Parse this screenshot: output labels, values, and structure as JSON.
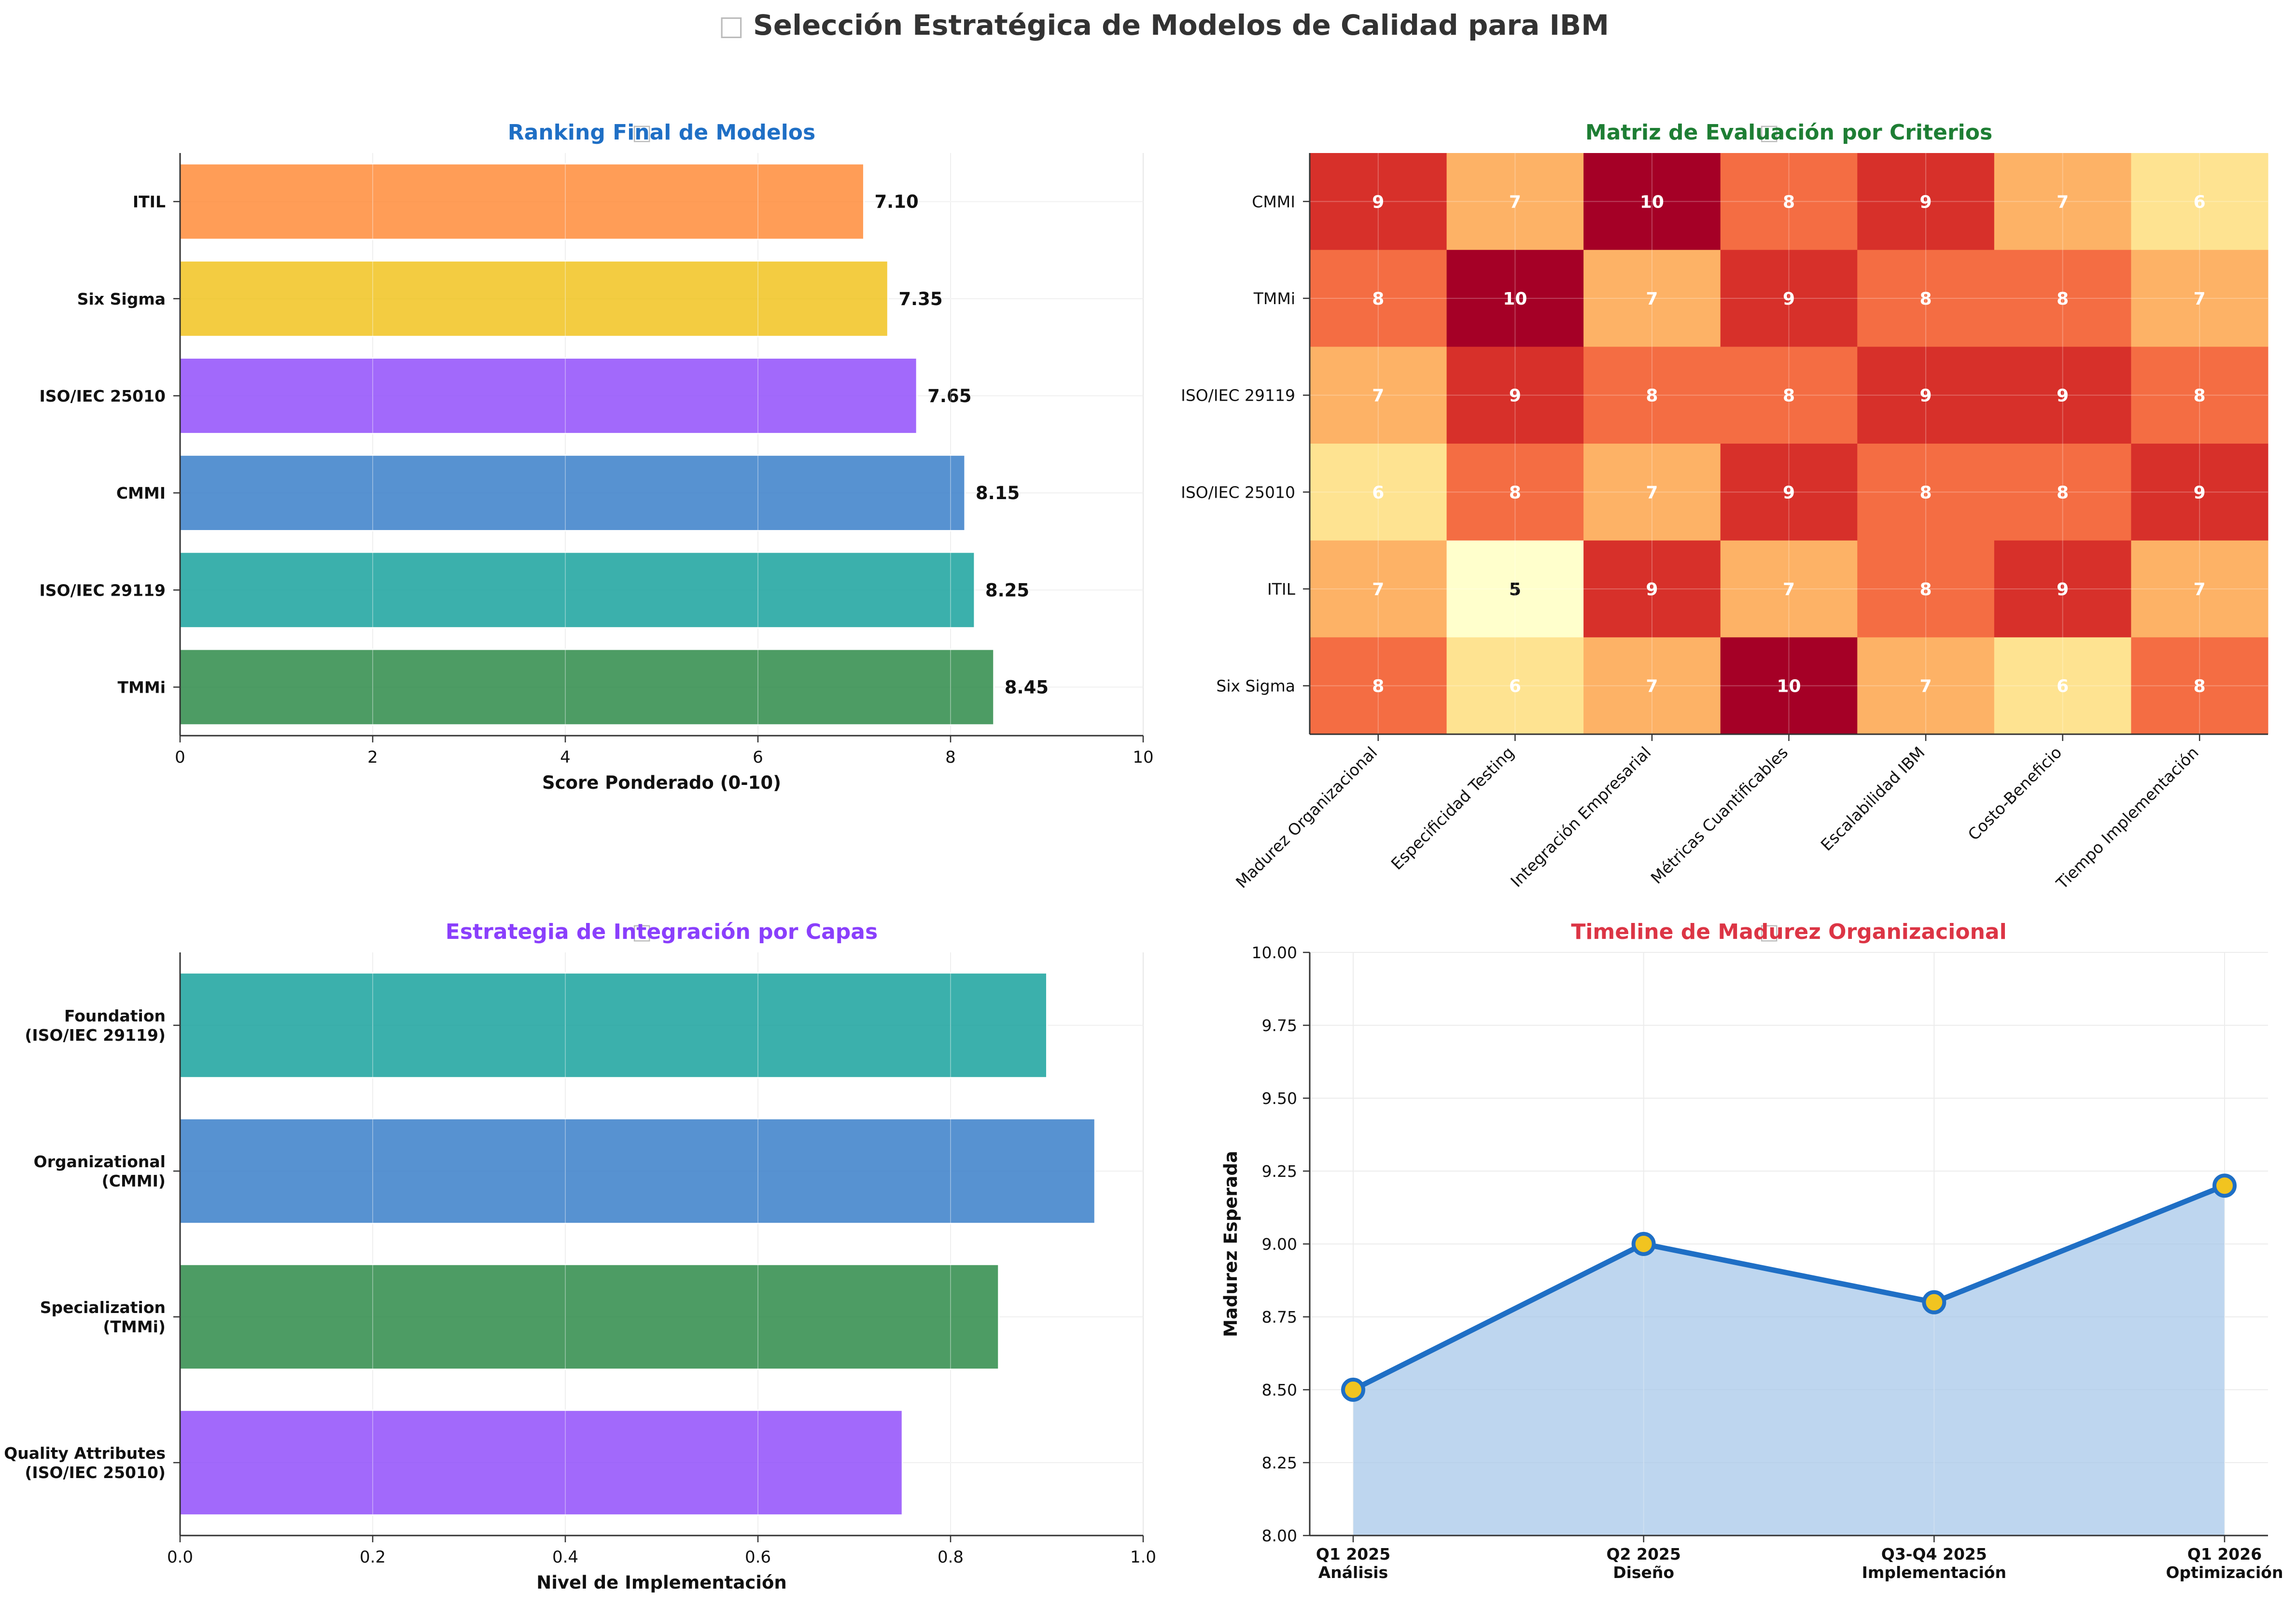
{
  "figure": {
    "title_icon": "chart-icon",
    "title": "Selección Estratégica de Modelos de Calidad para IBM"
  },
  "chart_data": [
    {
      "type": "bar",
      "orientation": "horizontal",
      "title_icon": "trophy-icon",
      "title": "Ranking Final de Modelos",
      "title_color": "#1f6fc5",
      "categories": [
        "TMMi",
        "ISO/IEC 29119",
        "CMMI",
        "ISO/IEC 25010",
        "Six Sigma",
        "ITIL"
      ],
      "values": [
        8.45,
        8.25,
        8.15,
        7.65,
        7.35,
        7.1
      ],
      "value_labels": [
        "8.45",
        "8.25",
        "8.15",
        "7.65",
        "7.35",
        "7.10"
      ],
      "colors": [
        "#2e8b4a",
        "#1aa39e",
        "#3a7fca",
        "#9250fb",
        "#f1c420",
        "#ff8c3a"
      ],
      "xlabel": "Score Ponderado (0-10)",
      "xlim": [
        0,
        10
      ],
      "xticks": [
        "0",
        "2",
        "4",
        "6",
        "8",
        "10"
      ],
      "grid": true
    },
    {
      "type": "heatmap",
      "title_icon": "target-icon",
      "title": "Matriz de Evaluación por Criterios",
      "title_color": "#1e7e34",
      "rows": [
        "CMMI",
        "TMMi",
        "ISO/IEC 29119",
        "ISO/IEC 25010",
        "ITIL",
        "Six Sigma"
      ],
      "columns": [
        "Madurez Organizacional",
        "Especificidad Testing",
        "Integración Empresarial",
        "Métricas Cuantificables",
        "Escalabilidad IBM",
        "Costo-Beneficio",
        "Tiempo Implementación"
      ],
      "values": [
        [
          9,
          7,
          10,
          8,
          9,
          7,
          6
        ],
        [
          8,
          10,
          7,
          9,
          8,
          8,
          7
        ],
        [
          7,
          9,
          8,
          8,
          9,
          9,
          8
        ],
        [
          6,
          8,
          7,
          9,
          8,
          8,
          9
        ],
        [
          7,
          5,
          9,
          7,
          8,
          9,
          7
        ],
        [
          8,
          6,
          7,
          10,
          7,
          6,
          8
        ]
      ],
      "colormap": "YlOrRd",
      "vmin": 5,
      "vmax": 10
    },
    {
      "type": "bar",
      "orientation": "horizontal",
      "title_icon": "link-icon",
      "title": "Estrategia de Integración por Capas",
      "title_color": "#8a3ffc",
      "categories": [
        "Quality Attributes\n(ISO/IEC 25010)",
        "Specialization\n(TMMi)",
        "Organizational\n(CMMI)",
        "Foundation\n(ISO/IEC 29119)"
      ],
      "values": [
        0.75,
        0.85,
        0.95,
        0.9
      ],
      "colors": [
        "#9250fb",
        "#2e8b4a",
        "#3a7fca",
        "#1aa39e"
      ],
      "xlabel": "Nivel de Implementación",
      "xlim": [
        0,
        1.0
      ],
      "xticks": [
        "0.0",
        "0.2",
        "0.4",
        "0.6",
        "0.8",
        "1.0"
      ],
      "grid": true
    },
    {
      "type": "area",
      "title_icon": "chart-up-icon",
      "title": "Timeline de Madurez Organizacional",
      "title_color": "#dc3545",
      "x": [
        "Q1 2025\nAnálisis",
        "Q2 2025\nDiseño",
        "Q3-Q4 2025\nImplementación",
        "Q1 2026\nOptimización"
      ],
      "y": [
        8.5,
        9.0,
        8.8,
        9.2
      ],
      "ylabel": "Madurez Esperada",
      "ylim": [
        8.0,
        10.0
      ],
      "yticks": [
        "8.00",
        "8.25",
        "8.50",
        "8.75",
        "9.00",
        "9.25",
        "9.50",
        "9.75",
        "10.00"
      ],
      "line_color": "#1f6fc5",
      "fill_color": "#a8c8ea",
      "marker_color": "#f1c420",
      "grid": true
    }
  ]
}
